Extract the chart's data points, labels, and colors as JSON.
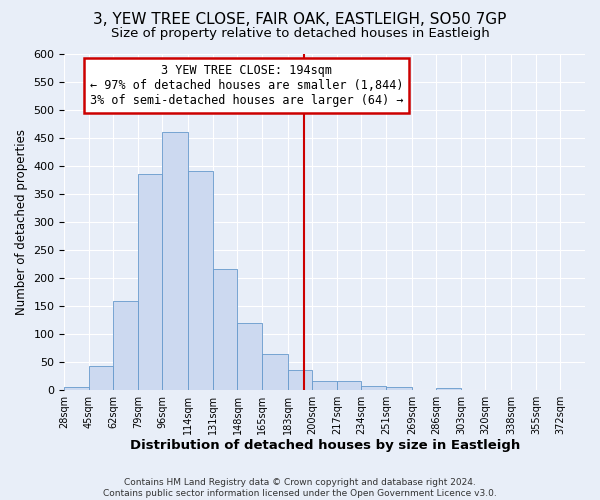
{
  "title": "3, YEW TREE CLOSE, FAIR OAK, EASTLEIGH, SO50 7GP",
  "subtitle": "Size of property relative to detached houses in Eastleigh",
  "xlabel": "Distribution of detached houses by size in Eastleigh",
  "ylabel": "Number of detached properties",
  "bin_labels": [
    "28sqm",
    "45sqm",
    "62sqm",
    "79sqm",
    "96sqm",
    "114sqm",
    "131sqm",
    "148sqm",
    "165sqm",
    "183sqm",
    "200sqm",
    "217sqm",
    "234sqm",
    "251sqm",
    "269sqm",
    "286sqm",
    "303sqm",
    "320sqm",
    "338sqm",
    "355sqm",
    "372sqm"
  ],
  "bar_heights": [
    5,
    42,
    158,
    385,
    460,
    390,
    216,
    120,
    63,
    35,
    16,
    16,
    7,
    4,
    0,
    3,
    0,
    0,
    0,
    0,
    0
  ],
  "bin_edges": [
    28,
    45,
    62,
    79,
    96,
    114,
    131,
    148,
    165,
    183,
    200,
    217,
    234,
    251,
    269,
    286,
    303,
    320,
    338,
    355,
    372,
    389
  ],
  "property_line_x": 194,
  "bar_color": "#ccd9f0",
  "bar_edge_color": "#6699cc",
  "line_color": "#cc0000",
  "ylim": [
    0,
    600
  ],
  "yticks": [
    0,
    50,
    100,
    150,
    200,
    250,
    300,
    350,
    400,
    450,
    500,
    550,
    600
  ],
  "annotation_title": "3 YEW TREE CLOSE: 194sqm",
  "annotation_line1": "← 97% of detached houses are smaller (1,844)",
  "annotation_line2": "3% of semi-detached houses are larger (64) →",
  "footer_line1": "Contains HM Land Registry data © Crown copyright and database right 2024.",
  "footer_line2": "Contains public sector information licensed under the Open Government Licence v3.0.",
  "fig_bg_color": "#e8eef8",
  "plot_bg_color": "#e8eef8",
  "grid_color": "#ffffff",
  "title_fontsize": 11,
  "subtitle_fontsize": 9.5,
  "annotation_box_edge_color": "#cc0000",
  "annotation_box_fill": "#ffffff"
}
